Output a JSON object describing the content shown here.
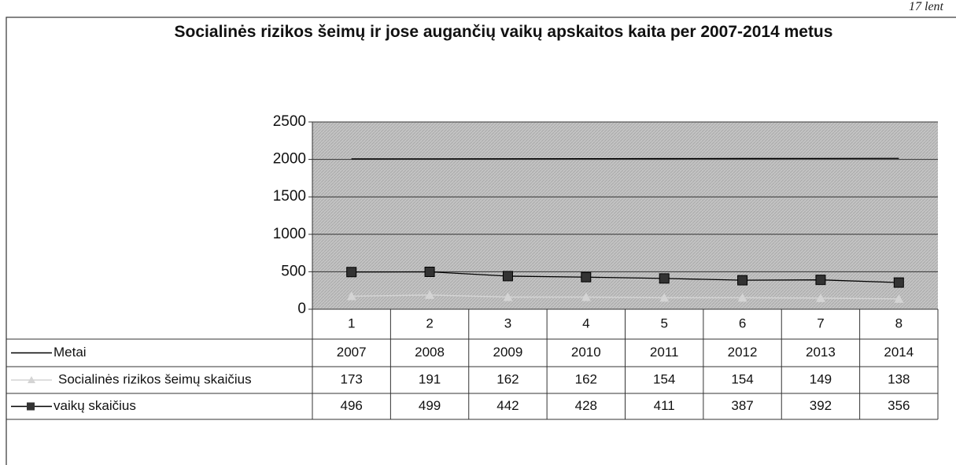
{
  "corner_note": "17 lent",
  "chart_data": {
    "type": "line",
    "title": "Socialinės rizikos šeimų ir jose augančių vaikų apskaitos kaita per 2007-2014 metus",
    "categories": [
      "1",
      "2",
      "3",
      "4",
      "5",
      "6",
      "7",
      "8"
    ],
    "series": [
      {
        "name": "Metai",
        "color": "#000000",
        "marker": "none",
        "values": [
          2007,
          2008,
          2009,
          2010,
          2011,
          2012,
          2013,
          2014
        ]
      },
      {
        "name": "Socialinės rizikos šeimų skaičius",
        "color": "#d4d4d4",
        "marker": "triangle",
        "values": [
          173,
          191,
          162,
          162,
          154,
          154,
          149,
          138
        ]
      },
      {
        "name": "vaikų skaičius",
        "color": "#000000",
        "marker": "square",
        "values": [
          496,
          499,
          442,
          428,
          411,
          387,
          392,
          356
        ]
      }
    ],
    "ylim": [
      0,
      2500
    ],
    "yticks": [
      0,
      500,
      1000,
      1500,
      2000,
      2500
    ],
    "grid": true
  }
}
